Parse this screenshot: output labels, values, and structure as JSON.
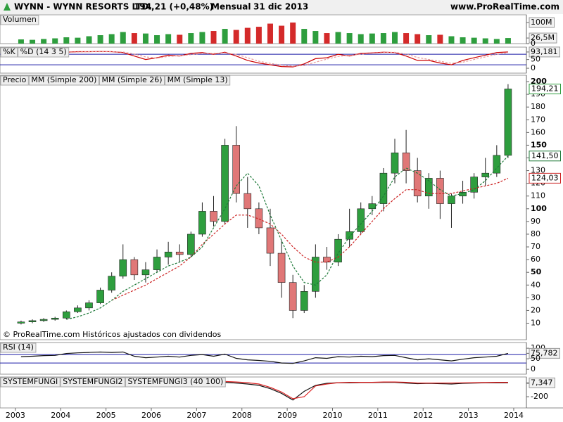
{
  "header": {
    "symbol": "WYNN - WYNN RESORTS LTD.",
    "price": "194,21 (+0,48%)",
    "period": "Mensual",
    "date": "31 dic 2013",
    "site": "www.ProRealTime.com"
  },
  "chart_data": [
    {
      "type": "bar",
      "title": "Volumen",
      "color_up": "#2e9e3e",
      "color_down": "#d42a2a",
      "values": [
        20,
        18,
        22,
        25,
        30,
        28,
        35,
        40,
        45,
        55,
        50,
        48,
        40,
        45,
        42,
        50,
        55,
        60,
        70,
        65,
        75,
        80,
        95,
        85,
        100,
        70,
        60,
        50,
        55,
        50,
        45,
        48,
        50,
        55,
        50,
        45,
        40,
        42,
        35,
        30,
        28,
        25,
        22,
        26.5
      ],
      "ylim": [
        0,
        137
      ],
      "yticks": [
        {
          "value": 100,
          "label": "100M"
        },
        {
          "value": 26.5,
          "label": "26,5M"
        },
        0
      ]
    },
    {
      "type": "line",
      "series": [
        {
          "name": "%K",
          "color": "#cc0000",
          "values": [
            80,
            85,
            90,
            88,
            92,
            95,
            95,
            96,
            95,
            90,
            70,
            50,
            60,
            75,
            70,
            85,
            90,
            80,
            92,
            70,
            45,
            30,
            20,
            10,
            8,
            25,
            55,
            60,
            80,
            70,
            85,
            88,
            92,
            90,
            70,
            45,
            45,
            30,
            20,
            45,
            60,
            75,
            90,
            93.181
          ]
        },
        {
          "name": "%D (14 3 5)",
          "color": "#e89a9a",
          "values": [
            78,
            82,
            87,
            88,
            90,
            93,
            95,
            95,
            95,
            93,
            82,
            65,
            58,
            68,
            72,
            78,
            85,
            85,
            88,
            80,
            60,
            40,
            28,
            18,
            12,
            16,
            35,
            52,
            68,
            74,
            80,
            86,
            90,
            91,
            82,
            62,
            50,
            40,
            28,
            35,
            50,
            65,
            80,
            90
          ]
        }
      ],
      "levels": [
        80,
        20
      ],
      "level_color": "#1a1aa6",
      "ylim": [
        -28,
        121
      ],
      "yticks": [
        {
          "value": 93.181,
          "label": "93,181"
        },
        50,
        0
      ]
    },
    {
      "type": "candlestick",
      "title": "Precio",
      "x": [
        2003.125,
        2003.375,
        2003.625,
        2003.875,
        2004.125,
        2004.375,
        2004.625,
        2004.875,
        2005.125,
        2005.375,
        2005.625,
        2005.875,
        2006.125,
        2006.375,
        2006.625,
        2006.875,
        2007.125,
        2007.375,
        2007.625,
        2007.875,
        2008.125,
        2008.375,
        2008.625,
        2008.875,
        2009.125,
        2009.375,
        2009.625,
        2009.875,
        2010.125,
        2010.375,
        2010.625,
        2010.875,
        2011.125,
        2011.375,
        2011.625,
        2011.875,
        2012.125,
        2012.375,
        2012.625,
        2012.875,
        2013.125,
        2013.375,
        2013.625,
        2013.875
      ],
      "open": [
        10,
        11,
        12,
        13,
        14,
        19,
        22,
        26,
        36,
        47,
        60,
        48,
        52,
        62,
        66,
        64,
        80,
        98,
        90,
        150,
        112,
        100,
        85,
        65,
        42,
        20,
        35,
        62,
        58,
        76,
        82,
        100,
        104,
        128,
        144,
        130,
        110,
        124,
        104,
        110,
        113,
        125,
        128,
        142
      ],
      "high": [
        12,
        13,
        14,
        15,
        20,
        24,
        28,
        38,
        50,
        72,
        62,
        58,
        68,
        74,
        72,
        82,
        105,
        110,
        155,
        165,
        125,
        105,
        100,
        75,
        48,
        40,
        72,
        70,
        80,
        100,
        105,
        110,
        132,
        155,
        162,
        140,
        128,
        130,
        112,
        122,
        128,
        140,
        150,
        198
      ],
      "low": [
        9,
        10,
        11,
        12,
        13,
        18,
        20,
        25,
        34,
        45,
        44,
        42,
        50,
        56,
        58,
        62,
        78,
        86,
        88,
        105,
        85,
        80,
        55,
        30,
        14,
        18,
        30,
        52,
        55,
        70,
        80,
        95,
        98,
        120,
        120,
        105,
        100,
        92,
        85,
        104,
        108,
        118,
        125,
        140
      ],
      "close": [
        11,
        12,
        13,
        14,
        19,
        22,
        26,
        36,
        47,
        60,
        48,
        52,
        62,
        66,
        64,
        80,
        98,
        90,
        150,
        112,
        100,
        85,
        65,
        42,
        20,
        35,
        62,
        58,
        76,
        82,
        100,
        104,
        128,
        144,
        130,
        110,
        124,
        104,
        110,
        113,
        125,
        128,
        142,
        194.21
      ],
      "color_up": "#2e9e3e",
      "color_down": "#e07777",
      "series": [
        {
          "name": "MM (Simple 200)",
          "color": "#7a1a1a"
        },
        {
          "name": "MM (Simple 26)",
          "color": "#cc2222",
          "values": [
            null,
            null,
            null,
            null,
            null,
            null,
            null,
            null,
            28,
            32,
            36,
            40,
            45,
            50,
            55,
            62,
            72,
            80,
            88,
            95,
            95,
            92,
            88,
            80,
            70,
            62,
            58,
            58,
            62,
            70,
            80,
            90,
            100,
            108,
            115,
            115,
            112,
            112,
            112,
            114,
            116,
            118,
            120,
            124.03
          ]
        },
        {
          "name": "MM (Simple 13)",
          "color": "#1f7a3a",
          "values": [
            null,
            null,
            null,
            null,
            13,
            15,
            18,
            22,
            28,
            35,
            40,
            45,
            50,
            55,
            58,
            62,
            70,
            85,
            100,
            118,
            128,
            118,
            95,
            75,
            55,
            42,
            40,
            48,
            65,
            78,
            88,
            98,
            110,
            125,
            132,
            128,
            122,
            115,
            110,
            112,
            115,
            122,
            132,
            141.5
          ]
        }
      ],
      "markers": [
        {
          "value": 194.21,
          "label": "194,21",
          "color": "#2e9e3e"
        },
        {
          "value": 141.5,
          "label": "141,50",
          "color": "#1f7a3a"
        },
        {
          "value": 124.03,
          "label": "124,03",
          "color": "#cc2222"
        }
      ],
      "annotation": "© ProRealTime.com  Históricos ajustados con dividendos",
      "xlim": [
        2002.66,
        2014.28
      ],
      "xticks": [
        2003,
        2004,
        2005,
        2006,
        2007,
        2008,
        2009,
        2010,
        2011,
        2012,
        2013,
        2014
      ],
      "ylim": [
        -3,
        205
      ],
      "yticks": [
        10,
        20,
        30,
        40,
        50,
        60,
        70,
        80,
        90,
        100,
        110,
        120,
        130,
        140,
        150,
        160,
        170,
        180,
        190,
        200
      ]
    },
    {
      "type": "line",
      "title": "RSI (14)",
      "series": [
        {
          "name": "RSI",
          "color": "#111111",
          "values": [
            60,
            62,
            65,
            66,
            75,
            78,
            80,
            82,
            80,
            82,
            62,
            55,
            58,
            62,
            58,
            66,
            70,
            62,
            72,
            52,
            45,
            42,
            38,
            30,
            28,
            40,
            55,
            52,
            60,
            58,
            62,
            60,
            65,
            66,
            55,
            45,
            50,
            45,
            40,
            48,
            55,
            58,
            62,
            75.782
          ]
        }
      ],
      "levels": [
        70,
        30
      ],
      "level_color": "#1a1aa6",
      "ylim": [
        -23,
        127
      ],
      "yticks": [
        100,
        {
          "value": 75.782,
          "label": "75,782"
        },
        50,
        0
      ]
    },
    {
      "type": "line",
      "series": [
        {
          "name": "SYSTEMFUNGI",
          "color": "#111111",
          "values": [
            20,
            20,
            20,
            20,
            20,
            20,
            20,
            20,
            20,
            20,
            15,
            10,
            10,
            12,
            10,
            12,
            15,
            10,
            15,
            5,
            -10,
            -30,
            -80,
            -150,
            -250,
            -120,
            -30,
            0,
            10,
            8,
            12,
            12,
            15,
            15,
            5,
            -5,
            0,
            -5,
            -10,
            0,
            5,
            8,
            10,
            7.347
          ]
        },
        {
          "name": "SYSTEMFUNGI2",
          "color": "#dd2222",
          "values": [
            35,
            35,
            35,
            35,
            35,
            35,
            35,
            35,
            35,
            35,
            30,
            25,
            25,
            25,
            25,
            25,
            28,
            25,
            28,
            20,
            10,
            -10,
            -60,
            -130,
            -230,
            -200,
            -40,
            -10,
            10,
            15,
            15,
            15,
            20,
            20,
            15,
            5,
            5,
            5,
            5,
            8,
            10,
            12,
            15,
            15
          ]
        },
        {
          "name": "SYSTEMFUNGI3 (40 100)",
          "color": "#1a1aa6"
        }
      ],
      "ylim": [
        -368,
        95
      ],
      "yticks": [
        0,
        {
          "value": 7.347,
          "label": "7,347"
        },
        -200
      ]
    }
  ]
}
